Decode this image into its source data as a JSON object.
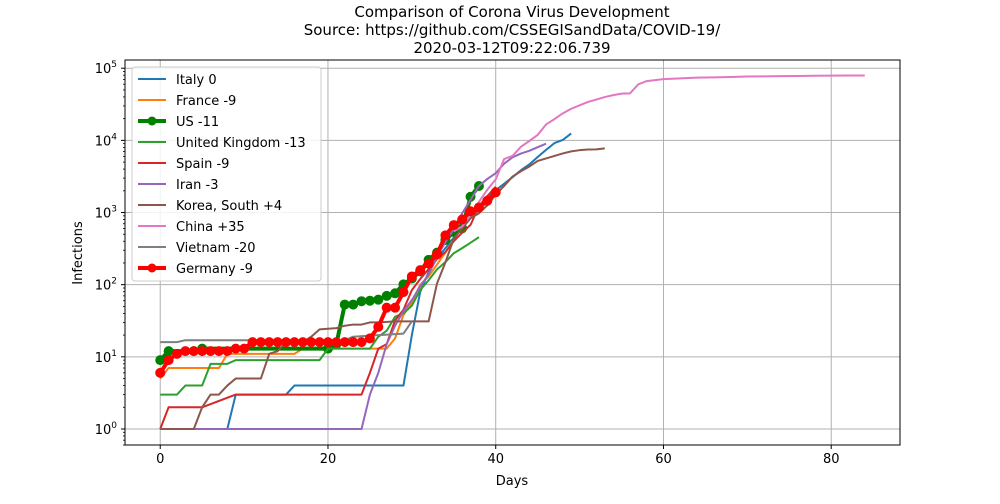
{
  "chart_data": {
    "type": "line",
    "title": [
      "Comparison of Corona Virus Development",
      "Source: https://github.com/CSSEGISandData/COVID-19/",
      "2020-03-12T09:22:06.739"
    ],
    "xlabel": "Days",
    "ylabel": "Infections",
    "xlim": [
      -4.2,
      88.2
    ],
    "ylim": [
      0.6,
      130000
    ],
    "yscale": "log",
    "grid": true,
    "legend": "top-left",
    "x_ticks": [
      0,
      20,
      40,
      60,
      80
    ],
    "x_tick_labels": [
      "0",
      "20",
      "40",
      "60",
      "80"
    ],
    "y_ticks": [
      1,
      10,
      100,
      1000,
      10000,
      100000
    ],
    "y_tick_labels": [
      {
        "base": "10",
        "exp": "0"
      },
      {
        "base": "10",
        "exp": "1"
      },
      {
        "base": "10",
        "exp": "2"
      },
      {
        "base": "10",
        "exp": "3"
      },
      {
        "base": "10",
        "exp": "4"
      },
      {
        "base": "10",
        "exp": "5"
      }
    ],
    "series": [
      {
        "name": "Italy 0",
        "color": "#1f77b4",
        "width": 2,
        "markers": false,
        "points": [
          [
            0,
            1
          ],
          [
            8,
            1
          ],
          [
            9,
            3
          ],
          [
            15,
            3
          ],
          [
            16,
            4
          ],
          [
            29,
            4
          ],
          [
            30,
            20
          ],
          [
            31,
            80
          ],
          [
            32,
            150
          ],
          [
            33,
            230
          ],
          [
            34,
            320
          ],
          [
            35,
            450
          ],
          [
            36,
            650
          ],
          [
            37,
            890
          ],
          [
            38,
            1130
          ],
          [
            39,
            1690
          ],
          [
            40,
            2040
          ],
          [
            41,
            2500
          ],
          [
            42,
            3090
          ],
          [
            43,
            3860
          ],
          [
            44,
            4640
          ],
          [
            45,
            5880
          ],
          [
            46,
            7380
          ],
          [
            47,
            9170
          ],
          [
            48,
            10150
          ],
          [
            49,
            12460
          ]
        ]
      },
      {
        "name": "France -9",
        "color": "#ff7f0e",
        "width": 2,
        "markers": false,
        "points": [
          [
            0,
            5
          ],
          [
            1,
            7
          ],
          [
            7,
            7
          ],
          [
            8,
            11
          ],
          [
            16,
            11
          ],
          [
            17,
            13
          ],
          [
            27,
            13
          ],
          [
            28,
            18
          ],
          [
            29,
            38
          ],
          [
            30,
            57
          ],
          [
            31,
            100
          ],
          [
            32,
            130
          ],
          [
            33,
            190
          ],
          [
            34,
            280
          ],
          [
            35,
            420
          ],
          [
            36,
            650
          ],
          [
            37,
            950
          ],
          [
            38,
            1130
          ],
          [
            39,
            1400
          ],
          [
            40,
            1800
          ]
        ]
      },
      {
        "name": "US -11",
        "color": "#008000",
        "width": 4,
        "markers": true,
        "points": [
          [
            0,
            9
          ],
          [
            1,
            12
          ],
          [
            4,
            12
          ],
          [
            5,
            13
          ],
          [
            20,
            13
          ],
          [
            21,
            15
          ],
          [
            22,
            53
          ],
          [
            23,
            53
          ],
          [
            24,
            59
          ],
          [
            25,
            60
          ],
          [
            26,
            62
          ],
          [
            27,
            70
          ],
          [
            28,
            76
          ],
          [
            29,
            101
          ],
          [
            30,
            122
          ],
          [
            31,
            153
          ],
          [
            32,
            221
          ],
          [
            33,
            278
          ],
          [
            34,
            417
          ],
          [
            35,
            537
          ],
          [
            36,
            605
          ],
          [
            37,
            1654
          ],
          [
            38,
            2330
          ]
        ]
      },
      {
        "name": "United Kingdom -13",
        "color": "#2ca02c",
        "width": 2,
        "markers": false,
        "points": [
          [
            0,
            3
          ],
          [
            2,
            3
          ],
          [
            3,
            4
          ],
          [
            5,
            4
          ],
          [
            6,
            8
          ],
          [
            8,
            8
          ],
          [
            9,
            9
          ],
          [
            19,
            9
          ],
          [
            20,
            13
          ],
          [
            25,
            13
          ],
          [
            26,
            19
          ],
          [
            27,
            23
          ],
          [
            28,
            36
          ],
          [
            29,
            40
          ],
          [
            30,
            51
          ],
          [
            31,
            85
          ],
          [
            32,
            115
          ],
          [
            33,
            163
          ],
          [
            34,
            206
          ],
          [
            35,
            273
          ],
          [
            36,
            321
          ],
          [
            37,
            382
          ],
          [
            38,
            456
          ]
        ]
      },
      {
        "name": "Spain -9",
        "color": "#d62728",
        "width": 2,
        "markers": false,
        "points": [
          [
            0,
            1
          ],
          [
            1,
            2
          ],
          [
            4,
            2
          ],
          [
            5,
            2
          ],
          [
            9,
            3
          ],
          [
            24,
            3
          ],
          [
            25,
            6
          ],
          [
            26,
            13
          ],
          [
            27,
            15
          ],
          [
            28,
            32
          ],
          [
            29,
            45
          ],
          [
            30,
            84
          ],
          [
            31,
            120
          ],
          [
            32,
            165
          ],
          [
            33,
            228
          ],
          [
            34,
            282
          ],
          [
            35,
            401
          ],
          [
            36,
            525
          ],
          [
            37,
            674
          ],
          [
            38,
            1231
          ],
          [
            39,
            1695
          ],
          [
            40,
            2277
          ]
        ]
      },
      {
        "name": "Iran -3",
        "color": "#9467bd",
        "width": 2,
        "markers": false,
        "points": [
          [
            0,
            1
          ],
          [
            24,
            1
          ],
          [
            25,
            3
          ],
          [
            26,
            6
          ],
          [
            27,
            15
          ],
          [
            28,
            27
          ],
          [
            29,
            43
          ],
          [
            30,
            61
          ],
          [
            31,
            95
          ],
          [
            32,
            139
          ],
          [
            33,
            245
          ],
          [
            34,
            388
          ],
          [
            35,
            593
          ],
          [
            36,
            978
          ],
          [
            37,
            1501
          ],
          [
            38,
            2336
          ],
          [
            39,
            2922
          ],
          [
            40,
            3513
          ],
          [
            41,
            4747
          ],
          [
            42,
            5823
          ],
          [
            43,
            6566
          ],
          [
            44,
            7161
          ],
          [
            45,
            8042
          ],
          [
            46,
            9000
          ]
        ]
      },
      {
        "name": "Korea, South +4",
        "color": "#8c564b",
        "width": 2,
        "markers": false,
        "points": [
          [
            0,
            1
          ],
          [
            4,
            1
          ],
          [
            5,
            2
          ],
          [
            6,
            3
          ],
          [
            7,
            3
          ],
          [
            8,
            4
          ],
          [
            9,
            5
          ],
          [
            12,
            5
          ],
          [
            13,
            11
          ],
          [
            14,
            12
          ],
          [
            15,
            16
          ],
          [
            17,
            16
          ],
          [
            18,
            19
          ],
          [
            19,
            24
          ],
          [
            21,
            25
          ],
          [
            22,
            27
          ],
          [
            23,
            28
          ],
          [
            24,
            28
          ],
          [
            25,
            30
          ],
          [
            26,
            30
          ],
          [
            28,
            31
          ],
          [
            31,
            31
          ],
          [
            32,
            31
          ],
          [
            33,
            104
          ],
          [
            34,
            204
          ],
          [
            35,
            433
          ],
          [
            36,
            602
          ],
          [
            37,
            833
          ],
          [
            38,
            977
          ],
          [
            39,
            1261
          ],
          [
            40,
            1766
          ],
          [
            41,
            2337
          ],
          [
            42,
            3150
          ],
          [
            43,
            3736
          ],
          [
            44,
            4335
          ],
          [
            45,
            5186
          ],
          [
            46,
            5621
          ],
          [
            47,
            6088
          ],
          [
            48,
            6593
          ],
          [
            49,
            7041
          ],
          [
            50,
            7313
          ],
          [
            51,
            7478
          ],
          [
            52,
            7513
          ],
          [
            53,
            7755
          ]
        ]
      },
      {
        "name": "China +35",
        "color": "#e377c2",
        "width": 2,
        "markers": false,
        "points": [
          [
            35,
            548
          ],
          [
            36,
            643
          ],
          [
            37,
            920
          ],
          [
            38,
            1406
          ],
          [
            39,
            2075
          ],
          [
            40,
            2877
          ],
          [
            41,
            5509
          ],
          [
            42,
            6087
          ],
          [
            43,
            8141
          ],
          [
            44,
            9802
          ],
          [
            45,
            11891
          ],
          [
            46,
            16630
          ],
          [
            47,
            19716
          ],
          [
            48,
            23707
          ],
          [
            49,
            27440
          ],
          [
            50,
            30587
          ],
          [
            51,
            34110
          ],
          [
            52,
            36814
          ],
          [
            53,
            39829
          ],
          [
            54,
            42354
          ],
          [
            55,
            44386
          ],
          [
            56,
            44759
          ],
          [
            57,
            59895
          ],
          [
            58,
            66358
          ],
          [
            59,
            68413
          ],
          [
            60,
            70513
          ],
          [
            62,
            72434
          ],
          [
            64,
            74185
          ],
          [
            66,
            74576
          ],
          [
            68,
            75700
          ],
          [
            70,
            76677
          ],
          [
            72,
            77150
          ],
          [
            74,
            77660
          ],
          [
            76,
            78064
          ],
          [
            78,
            78497
          ],
          [
            80,
            78824
          ],
          [
            82,
            79251
          ],
          [
            84,
            79300
          ]
        ]
      },
      {
        "name": "Vietnam -20",
        "color": "#7f7f7f",
        "width": 2,
        "markers": false,
        "points": [
          [
            0,
            16
          ],
          [
            2,
            16
          ],
          [
            3,
            17
          ],
          [
            22,
            17
          ],
          [
            23,
            19
          ],
          [
            29,
            21
          ],
          [
            30,
            31
          ]
        ]
      },
      {
        "name": "Germany -9",
        "color": "#ff0000",
        "width": 4,
        "markers": true,
        "points": [
          [
            0,
            6
          ],
          [
            1,
            9
          ],
          [
            2,
            11
          ],
          [
            3,
            12
          ],
          [
            4,
            12
          ],
          [
            5,
            12
          ],
          [
            6,
            12
          ],
          [
            7,
            12
          ],
          [
            8,
            12
          ],
          [
            9,
            13
          ],
          [
            10,
            13
          ],
          [
            11,
            16
          ],
          [
            12,
            16
          ],
          [
            13,
            16
          ],
          [
            14,
            16
          ],
          [
            15,
            16
          ],
          [
            16,
            16
          ],
          [
            17,
            16
          ],
          [
            18,
            16
          ],
          [
            19,
            16
          ],
          [
            20,
            16
          ],
          [
            21,
            16
          ],
          [
            22,
            16
          ],
          [
            23,
            16
          ],
          [
            24,
            16
          ],
          [
            25,
            18
          ],
          [
            26,
            26
          ],
          [
            27,
            48
          ],
          [
            28,
            48
          ],
          [
            29,
            79
          ],
          [
            30,
            130
          ],
          [
            31,
            159
          ],
          [
            32,
            196
          ],
          [
            33,
            262
          ],
          [
            34,
            482
          ],
          [
            35,
            670
          ],
          [
            36,
            799
          ],
          [
            37,
            1040
          ],
          [
            38,
            1176
          ],
          [
            39,
            1457
          ],
          [
            40,
            1908
          ]
        ]
      }
    ]
  }
}
